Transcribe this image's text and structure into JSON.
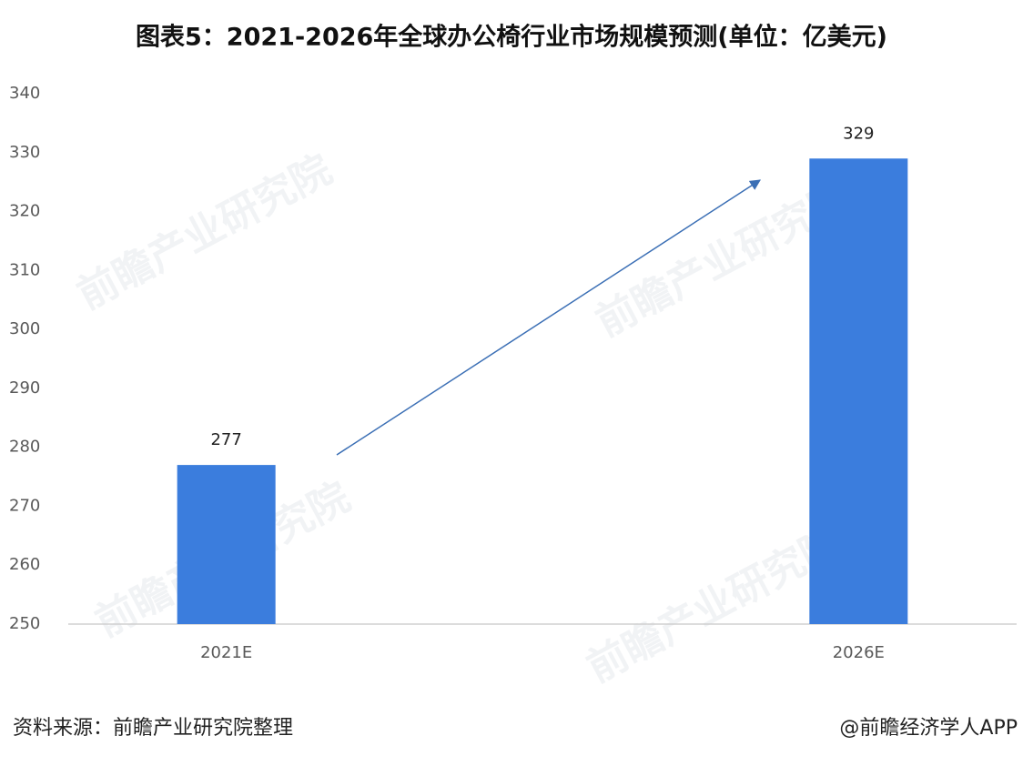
{
  "chart_data": {
    "type": "bar",
    "title": "图表5：2021-2026年全球办公椅行业市场规模预测(单位：亿美元)",
    "categories": [
      "2021E",
      "2026E"
    ],
    "values": [
      277,
      329
    ],
    "color": "#3b7ddd",
    "ylim": [
      250,
      340
    ],
    "yticks": [
      250,
      260,
      270,
      280,
      290,
      300,
      310,
      320,
      330,
      340
    ],
    "grid": false,
    "watermark": "前瞻产业研究院",
    "source": "资料来源：前瞻产业研究院整理",
    "credit": "@前瞻经济学人APP"
  }
}
